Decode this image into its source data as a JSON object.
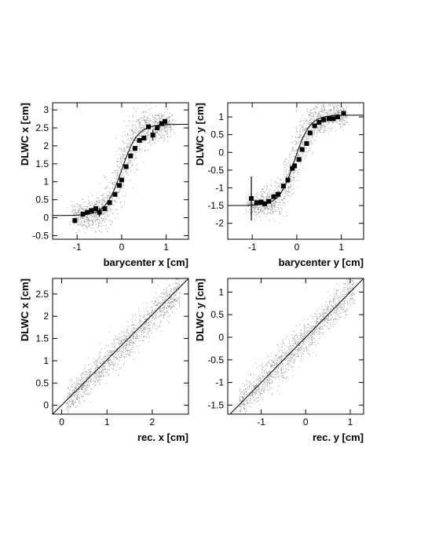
{
  "chart_data": [
    {
      "id": "p1",
      "type": "scatter",
      "xlabel": "barycenter x [cm]",
      "ylabel": "DLWC x [cm]",
      "xlim": [
        -1.55,
        1.5
      ],
      "ylim": [
        -0.6,
        3.2
      ],
      "xticks": [
        -1,
        0,
        1
      ],
      "yticks": [
        -0.5,
        0,
        0.5,
        1,
        1.5,
        2,
        2.5,
        3
      ],
      "fit_curve": {
        "kind": "sigmoid",
        "low": 0.06,
        "high": 2.6,
        "center": 0.0,
        "width": 0.18
      },
      "profile_points": [
        {
          "x": -1.05,
          "y": -0.08,
          "err": 0.06
        },
        {
          "x": -0.87,
          "y": 0.1,
          "err": 0.04
        },
        {
          "x": -0.77,
          "y": 0.15,
          "err": 0.04
        },
        {
          "x": -0.68,
          "y": 0.2,
          "err": 0.05
        },
        {
          "x": -0.58,
          "y": 0.25,
          "err": 0.05
        },
        {
          "x": -0.5,
          "y": 0.15,
          "err": 0.12
        },
        {
          "x": -0.38,
          "y": 0.25,
          "err": 0.05
        },
        {
          "x": -0.27,
          "y": 0.42,
          "err": 0.05
        },
        {
          "x": -0.15,
          "y": 0.65,
          "err": 0.05
        },
        {
          "x": -0.05,
          "y": 0.9,
          "err": 0.05
        },
        {
          "x": 0.0,
          "y": 1.05,
          "err": 0.05
        },
        {
          "x": 0.1,
          "y": 1.42,
          "err": 0.05
        },
        {
          "x": 0.2,
          "y": 1.72,
          "err": 0.05
        },
        {
          "x": 0.3,
          "y": 1.93,
          "err": 0.05
        },
        {
          "x": 0.4,
          "y": 2.15,
          "err": 0.05
        },
        {
          "x": 0.5,
          "y": 2.22,
          "err": 0.06
        },
        {
          "x": 0.6,
          "y": 2.53,
          "err": 0.05
        },
        {
          "x": 0.7,
          "y": 2.3,
          "err": 0.15
        },
        {
          "x": 0.8,
          "y": 2.5,
          "err": 0.05
        },
        {
          "x": 0.9,
          "y": 2.62,
          "err": 0.05
        },
        {
          "x": 0.97,
          "y": 2.68,
          "err": 0.05
        }
      ],
      "scatter_cloud": {
        "kind": "sigmoid",
        "x_range": [
          -1.1,
          1.1
        ],
        "spread": 0.28,
        "n": 1400
      },
      "grid": false
    },
    {
      "id": "p2",
      "type": "scatter",
      "xlabel": "barycenter y  [cm]",
      "ylabel": "DLWC y [cm]",
      "xlim": [
        -1.55,
        1.5
      ],
      "ylim": [
        -2.45,
        1.4
      ],
      "xticks": [
        -1,
        0,
        1
      ],
      "yticks": [
        -2,
        -1.5,
        -1,
        -0.5,
        0,
        0.5,
        1
      ],
      "fit_curve": {
        "kind": "sigmoid",
        "low": -1.5,
        "high": 1.05,
        "center": -0.05,
        "width": 0.17
      },
      "profile_points": [
        {
          "x": -1.02,
          "y": -1.3,
          "err": 0.62
        },
        {
          "x": -0.9,
          "y": -1.42,
          "err": 0.05
        },
        {
          "x": -0.8,
          "y": -1.4,
          "err": 0.05
        },
        {
          "x": -0.72,
          "y": -1.45,
          "err": 0.05
        },
        {
          "x": -0.63,
          "y": -1.38,
          "err": 0.05
        },
        {
          "x": -0.52,
          "y": -1.25,
          "err": 0.05
        },
        {
          "x": -0.42,
          "y": -1.18,
          "err": 0.05
        },
        {
          "x": -0.3,
          "y": -0.95,
          "err": 0.05
        },
        {
          "x": -0.2,
          "y": -0.78,
          "err": 0.05
        },
        {
          "x": -0.1,
          "y": -0.45,
          "err": 0.05
        },
        {
          "x": -0.05,
          "y": -0.38,
          "err": 0.05
        },
        {
          "x": 0.05,
          "y": -0.2,
          "err": 0.05
        },
        {
          "x": 0.12,
          "y": 0.08,
          "err": 0.05
        },
        {
          "x": 0.22,
          "y": 0.25,
          "err": 0.05
        },
        {
          "x": 0.3,
          "y": 0.55,
          "err": 0.05
        },
        {
          "x": 0.4,
          "y": 0.75,
          "err": 0.05
        },
        {
          "x": 0.5,
          "y": 0.85,
          "err": 0.05
        },
        {
          "x": 0.6,
          "y": 0.92,
          "err": 0.05
        },
        {
          "x": 0.72,
          "y": 0.95,
          "err": 0.05
        },
        {
          "x": 0.82,
          "y": 0.95,
          "err": 0.05
        },
        {
          "x": 0.92,
          "y": 1.0,
          "err": 0.05
        },
        {
          "x": 1.05,
          "y": 1.1,
          "err": 0.05
        }
      ],
      "scatter_cloud": {
        "kind": "sigmoid",
        "x_range": [
          -1.1,
          1.1
        ],
        "spread": 0.25,
        "n": 1400
      },
      "grid": false
    },
    {
      "id": "p3",
      "type": "scatter",
      "xlabel": "rec. x [cm]",
      "ylabel": "DLWC x [cm]",
      "xlim": [
        -0.2,
        2.8
      ],
      "ylim": [
        -0.2,
        2.85
      ],
      "xticks": [
        0,
        1,
        2
      ],
      "yticks": [
        0,
        0.5,
        1,
        1.5,
        2,
        2.5
      ],
      "diagonal": [
        [
          -0.2,
          -0.2
        ],
        [
          2.8,
          2.85
        ]
      ],
      "scatter_cloud": {
        "kind": "diagonal",
        "x_range": [
          0.1,
          2.6
        ],
        "spread": 0.18,
        "n": 1300
      },
      "grid": false
    },
    {
      "id": "p4",
      "type": "scatter",
      "xlabel": "rec. y [cm]",
      "ylabel": "DLWC y [cm]",
      "xlim": [
        -1.75,
        1.3
      ],
      "ylim": [
        -1.7,
        1.3
      ],
      "xticks": [
        -1,
        0,
        1
      ],
      "yticks": [
        -1.5,
        -1,
        -0.5,
        0,
        0.5,
        1
      ],
      "diagonal": [
        [
          -1.7,
          -1.7
        ],
        [
          1.3,
          1.3
        ]
      ],
      "scatter_cloud": {
        "kind": "diagonal",
        "x_range": [
          -1.5,
          1.1
        ],
        "spread": 0.2,
        "n": 1300
      },
      "grid": false
    }
  ]
}
